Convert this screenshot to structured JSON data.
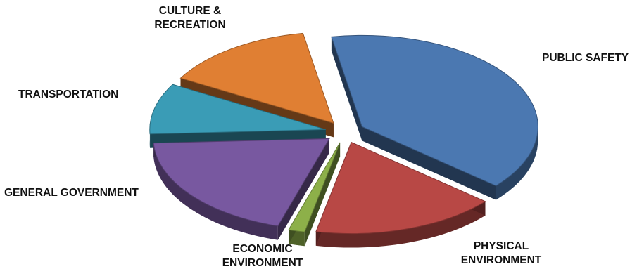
{
  "chart_data": {
    "type": "pie",
    "title": "",
    "slices": [
      {
        "label": "PUBLIC SAFETY",
        "value": 39,
        "color": "#4b78b1"
      },
      {
        "label": "PHYSICAL\nENVIRONMENT",
        "value": 17,
        "color": "#b84845"
      },
      {
        "label": "ECONOMIC\nENVIRONMENT",
        "value": 1.5,
        "color": "#8db049"
      },
      {
        "label": "GENERAL GOVERNMENT",
        "value": 19.5,
        "color": "#7858a0"
      },
      {
        "label": "TRANSPORTATION",
        "value": 9,
        "color": "#3a9cb6"
      },
      {
        "label": "CULTURE &\nRECREATION",
        "value": 14,
        "color": "#e07f33"
      }
    ],
    "exploded": true,
    "three_d": true,
    "legend": "none"
  }
}
